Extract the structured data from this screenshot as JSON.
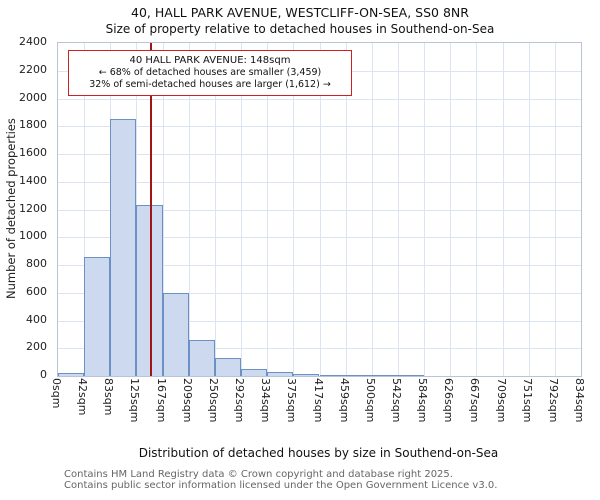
{
  "title": "40, HALL PARK AVENUE, WESTCLIFF-ON-SEA, SS0 8NR",
  "subtitle": "Size of property relative to detached houses in Southend-on-Sea",
  "annotation": {
    "line1": "40 HALL PARK AVENUE: 148sqm",
    "line2": "← 68% of detached houses are smaller (3,459)",
    "line3": "32% of semi-detached houses are larger (1,612) →",
    "border_color": "#cc2222"
  },
  "footer": {
    "line1": "Contains HM Land Registry data © Crown copyright and database right 2025.",
    "line2": "Contains public sector information licensed under the Open Government Licence v3.0."
  },
  "chart_data": {
    "type": "bar",
    "title": "40, HALL PARK AVENUE, WESTCLIFF-ON-SEA, SS0 8NR",
    "subtitle": "Size of property relative to detached houses in Southend-on-Sea",
    "xlabel": "Distribution of detached houses by size in Southend-on-Sea",
    "ylabel": "Number of detached properties",
    "categories": [
      "0sqm",
      "42sqm",
      "83sqm",
      "125sqm",
      "167sqm",
      "209sqm",
      "250sqm",
      "292sqm",
      "334sqm",
      "375sqm",
      "417sqm",
      "459sqm",
      "500sqm",
      "542sqm",
      "584sqm",
      "626sqm",
      "667sqm",
      "709sqm",
      "751sqm",
      "792sqm",
      "834sqm"
    ],
    "values": [
      25,
      860,
      1850,
      1230,
      600,
      260,
      130,
      50,
      30,
      15,
      10,
      8,
      5,
      2,
      0,
      0,
      0,
      0,
      0,
      0
    ],
    "ylim": [
      0,
      2400
    ],
    "ytick_step": 200,
    "x_max_sqm": 834,
    "marker_value_sqm": 148,
    "grid": true,
    "legend": "none",
    "bar_color": "#ccd9ee",
    "bar_border": "#6a90c4",
    "marker_color": "#a31515",
    "grid_color": "#dce4f2"
  }
}
